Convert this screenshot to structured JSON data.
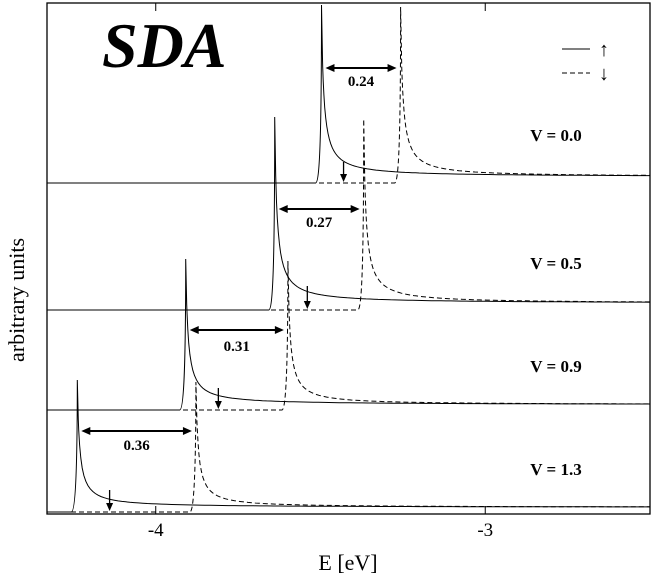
{
  "chart_data": {
    "type": "line",
    "title": "SDA",
    "xlabel": "E [eV]",
    "ylabel": "arbitrary units",
    "xlim": [
      -4.33,
      -2.5
    ],
    "x_ticks": [
      -4,
      -3
    ],
    "x_tick_labels": [
      "-4",
      "-3"
    ],
    "legend": {
      "position": "top-right",
      "entries": [
        {
          "style": "solid",
          "symbol": "↑"
        },
        {
          "style": "dashed",
          "symbol": "↓"
        }
      ]
    },
    "panels": [
      {
        "label": "V = 0.0",
        "up_edge": -3.497,
        "down_edge": -3.257,
        "gap": "0.24",
        "fermi_arrow": -3.43
      },
      {
        "label": "V = 0.5",
        "up_edge": -3.639,
        "down_edge": -3.369,
        "gap": "0.27",
        "fermi_arrow": -3.54
      },
      {
        "label": "V = 0.9",
        "up_edge": -3.909,
        "down_edge": -3.599,
        "gap": "0.31",
        "fermi_arrow": -3.81
      },
      {
        "label": "V = 1.3",
        "up_edge": -4.238,
        "down_edge": -3.878,
        "gap": "0.36",
        "fermi_arrow": -4.14
      }
    ]
  }
}
